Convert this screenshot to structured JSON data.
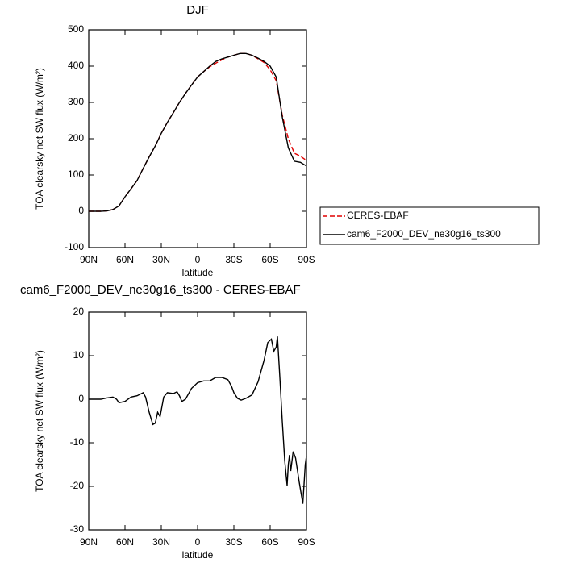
{
  "chart_data": [
    {
      "type": "line",
      "title": "DJF",
      "ylabel": "TOA clearsky net SW flux (W/m²)",
      "xlabel": "latitude",
      "xlim": [
        90,
        -90
      ],
      "ylim": [
        -100,
        500
      ],
      "xticks": [
        {
          "value": 90,
          "label": "90N"
        },
        {
          "value": 60,
          "label": "60N"
        },
        {
          "value": 30,
          "label": "30N"
        },
        0,
        {
          "value": -30,
          "label": "30S"
        },
        {
          "value": -60,
          "label": "60S"
        },
        {
          "value": -90,
          "label": "90S"
        }
      ],
      "yticks": [
        -100,
        0,
        100,
        200,
        300,
        400,
        500
      ],
      "x": [
        90,
        85,
        80,
        75,
        70,
        65,
        60,
        55,
        50,
        45,
        40,
        35,
        30,
        25,
        20,
        15,
        10,
        5,
        0,
        -5,
        -10,
        -15,
        -20,
        -25,
        -30,
        -35,
        -40,
        -45,
        -50,
        -55,
        -60,
        -65,
        -70,
        -75,
        -80,
        -85,
        -90
      ],
      "series": [
        {
          "name": "CERES-EBAF",
          "color": "#e00000",
          "dash": true,
          "values": [
            0,
            0,
            0,
            1,
            5,
            15,
            40,
            62,
            85,
            118,
            150,
            180,
            215,
            245,
            272,
            300,
            325,
            348,
            370,
            385,
            398,
            408,
            417,
            425,
            430,
            435,
            435,
            430,
            420,
            410,
            390,
            360,
            265,
            200,
            160,
            152,
            140
          ]
        },
        {
          "name": "cam6_F2000_DEV_ne30g16_ts300",
          "color": "#000000",
          "dash": false,
          "values": [
            0,
            0,
            0,
            1,
            5,
            15,
            40,
            62,
            85,
            118,
            150,
            180,
            215,
            245,
            272,
            300,
            325,
            348,
            370,
            385,
            400,
            413,
            420,
            425,
            430,
            435,
            435,
            430,
            422,
            413,
            400,
            370,
            260,
            175,
            138,
            135,
            125
          ]
        }
      ]
    },
    {
      "type": "line",
      "title": "cam6_F2000_DEV_ne30g16_ts300 - CERES-EBAF",
      "ylabel": "TOA clearsky net SW flux (W/m²)",
      "xlabel": "latitude",
      "xlim": [
        90,
        -90
      ],
      "ylim": [
        -30,
        20
      ],
      "xticks": [
        {
          "value": 90,
          "label": "90N"
        },
        {
          "value": 60,
          "label": "60N"
        },
        {
          "value": 30,
          "label": "30N"
        },
        0,
        {
          "value": -30,
          "label": "30S"
        },
        {
          "value": -60,
          "label": "60S"
        },
        {
          "value": -90,
          "label": "90S"
        }
      ],
      "yticks": [
        -30,
        -20,
        -10,
        0,
        10,
        20
      ],
      "color": "#000000",
      "x": [
        90,
        80,
        75,
        70,
        67,
        65,
        60,
        55,
        50,
        45,
        43,
        40,
        37,
        35,
        33,
        31,
        28,
        25,
        20,
        17,
        15,
        13,
        10,
        5,
        0,
        -5,
        -10,
        -15,
        -20,
        -25,
        -28,
        -30,
        -33,
        -36,
        -40,
        -45,
        -50,
        -55,
        -58,
        -61,
        -63,
        -65,
        -66,
        -68,
        -70,
        -72,
        -74,
        -75,
        -76,
        -77,
        -79,
        -81,
        -84,
        -87,
        -89,
        -90
      ],
      "values": [
        0,
        0,
        0.3,
        0.5,
        0,
        -0.8,
        -0.5,
        0.5,
        0.8,
        1.5,
        0.5,
        -3,
        -5.8,
        -5.5,
        -3,
        -4,
        0.5,
        1.5,
        1.3,
        1.7,
        0.8,
        -0.5,
        0,
        2.5,
        3.8,
        4.2,
        4.2,
        5,
        5,
        4.5,
        3,
        1.5,
        0.2,
        -0.2,
        0.2,
        1,
        4,
        9,
        13,
        13.8,
        11,
        12,
        14.4,
        5,
        -5,
        -14,
        -19.8,
        -15,
        -12.8,
        -16.5,
        -12,
        -13.5,
        -19,
        -24,
        -15,
        -13
      ]
    }
  ]
}
